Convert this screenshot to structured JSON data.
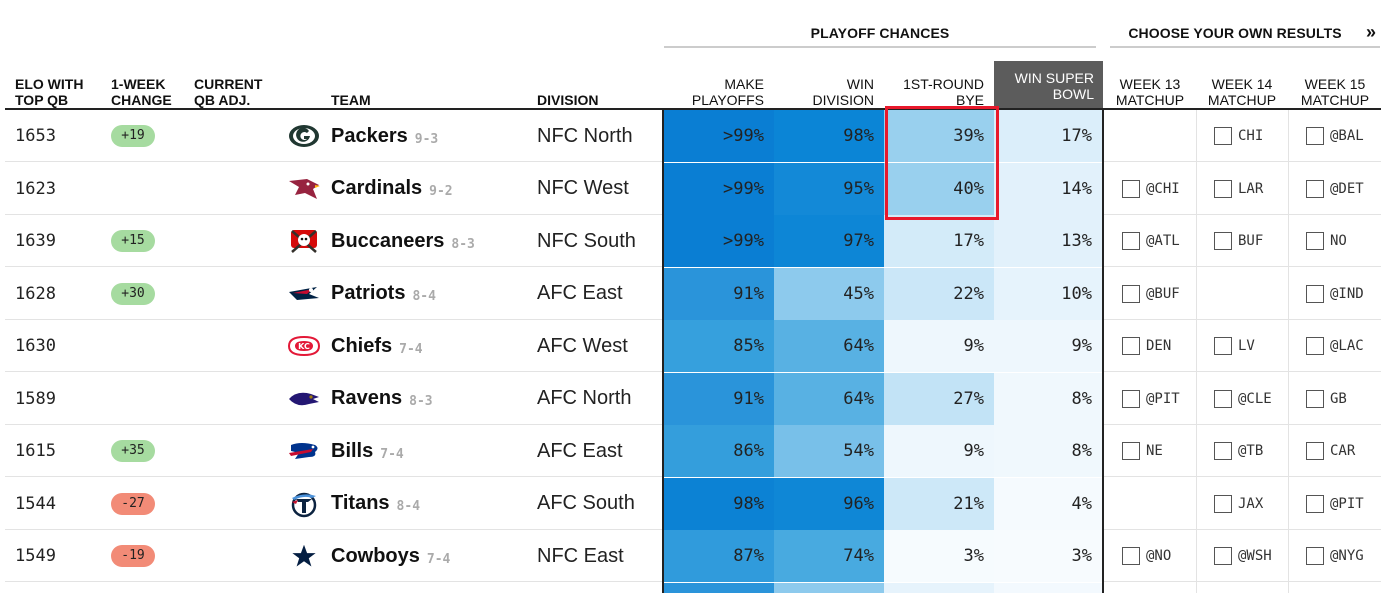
{
  "groups": {
    "playoff_chances": "PLAYOFF CHANCES",
    "choose_results": "CHOOSE YOUR OWN RESULTS",
    "choose_arrow": "»"
  },
  "headers": {
    "elo": "ELO WITH\nTOP QB",
    "change": "1-WEEK\nCHANGE",
    "qb_adj": "CURRENT\nQB ADJ.",
    "team": "TEAM",
    "division": "DIVISION",
    "make_playoffs": "MAKE\nPLAYOFFS",
    "win_division": "WIN\nDIVISION",
    "first_round_bye": "1ST-ROUND\nBYE",
    "win_super_bowl": "WIN SUPER\nBOWL",
    "week13": "WEEK 13\nMATCHUP",
    "week14": "WEEK 14\nMATCHUP",
    "week15": "WEEK 15\nMATCHUP"
  },
  "teams": [
    {
      "elo": "1653",
      "change": "+19",
      "change_type": "pos",
      "logo": "packers-logo",
      "name": "Packers",
      "record": "9-3",
      "division": "NFC North",
      "make_playoffs": ">99%",
      "win_division": "98%",
      "bye": "39%",
      "super_bowl": "17%",
      "week13": "",
      "week14": "CHI",
      "week15": "@BAL",
      "colors": [
        "#0a7ed3",
        "#0b85d6",
        "#99d0ee",
        "#dbeefa"
      ]
    },
    {
      "elo": "1623",
      "change": "",
      "change_type": "",
      "logo": "cardinals-logo",
      "name": "Cardinals",
      "record": "9-2",
      "division": "NFC West",
      "make_playoffs": ">99%",
      "win_division": "95%",
      "bye": "40%",
      "super_bowl": "14%",
      "week13": "@CHI",
      "week14": "LAR",
      "week15": "@DET",
      "colors": [
        "#0a7ed3",
        "#1389d7",
        "#99d0ee",
        "#e2f1fb"
      ]
    },
    {
      "elo": "1639",
      "change": "+15",
      "change_type": "pos",
      "logo": "buccaneers-logo",
      "name": "Buccaneers",
      "record": "8-3",
      "division": "NFC South",
      "make_playoffs": ">99%",
      "win_division": "97%",
      "bye": "17%",
      "super_bowl": "13%",
      "week13": "@ATL",
      "week14": "BUF",
      "week15": "NO",
      "colors": [
        "#0a7ed3",
        "#0d86d6",
        "#d3ebf9",
        "#e2f1fb"
      ]
    },
    {
      "elo": "1628",
      "change": "+30",
      "change_type": "pos",
      "logo": "patriots-logo",
      "name": "Patriots",
      "record": "8-4",
      "division": "AFC East",
      "make_playoffs": "91%",
      "win_division": "45%",
      "bye": "22%",
      "super_bowl": "10%",
      "week13": "@BUF",
      "week14": "",
      "week15": "@IND",
      "colors": [
        "#2a94da",
        "#8dcaed",
        "#cbe7f8",
        "#e6f3fc"
      ]
    },
    {
      "elo": "1630",
      "change": "",
      "change_type": "",
      "logo": "chiefs-logo",
      "name": "Chiefs",
      "record": "7-4",
      "division": "AFC West",
      "make_playoffs": "85%",
      "win_division": "64%",
      "bye": "9%",
      "super_bowl": "9%",
      "week13": "DEN",
      "week14": "LV",
      "week15": "@LAC",
      "colors": [
        "#36a0dd",
        "#58b1e3",
        "#eef7fd",
        "#eef7fd"
      ]
    },
    {
      "elo": "1589",
      "change": "",
      "change_type": "",
      "logo": "ravens-logo",
      "name": "Ravens",
      "record": "8-3",
      "division": "AFC North",
      "make_playoffs": "91%",
      "win_division": "64%",
      "bye": "27%",
      "super_bowl": "8%",
      "week13": "@PIT",
      "week14": "@CLE",
      "week15": "GB",
      "colors": [
        "#2a94da",
        "#58b1e3",
        "#c2e3f6",
        "#f0f8fd"
      ]
    },
    {
      "elo": "1615",
      "change": "+35",
      "change_type": "pos",
      "logo": "bills-logo",
      "name": "Bills",
      "record": "7-4",
      "division": "AFC East",
      "make_playoffs": "86%",
      "win_division": "54%",
      "bye": "9%",
      "super_bowl": "8%",
      "week13": "NE",
      "week14": "@TB",
      "week15": "CAR",
      "colors": [
        "#349edc",
        "#78c0e9",
        "#eef7fd",
        "#f0f8fd"
      ]
    },
    {
      "elo": "1544",
      "change": "-27",
      "change_type": "neg",
      "logo": "titans-logo",
      "name": "Titans",
      "record": "8-4",
      "division": "AFC South",
      "make_playoffs": "98%",
      "win_division": "96%",
      "bye": "21%",
      "super_bowl": "4%",
      "week13": "",
      "week14": "JAX",
      "week15": "@PIT",
      "colors": [
        "#0c82d4",
        "#0f87d6",
        "#cde8f8",
        "#f5fafe"
      ]
    },
    {
      "elo": "1549",
      "change": "-19",
      "change_type": "neg",
      "logo": "cowboys-logo",
      "name": "Cowboys",
      "record": "7-4",
      "division": "NFC East",
      "make_playoffs": "87%",
      "win_division": "74%",
      "bye": "3%",
      "super_bowl": "3%",
      "week13": "@NO",
      "week14": "@WSH",
      "week15": "@NYG",
      "colors": [
        "#309bdc",
        "#48aae0",
        "#f6fbfe",
        "#f7fbfe"
      ]
    }
  ],
  "colors": {
    "header_dark": "#5c5c5c",
    "highlight": "#e8192c",
    "positive_badge": "#a6dba0",
    "negative_badge": "#f28b77"
  }
}
